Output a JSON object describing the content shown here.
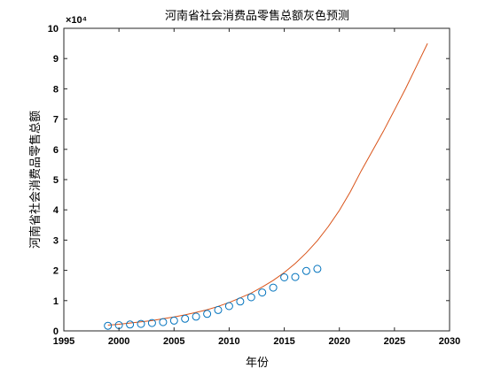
{
  "chart_data": {
    "type": "scatter",
    "title": "河南省社会消费品零售总额灰色预测",
    "xlabel": "年份",
    "ylabel": "河南省社会消费品零售总额",
    "exponent_label": "×10⁴",
    "xlim": [
      1995,
      2030
    ],
    "ylim": [
      0,
      10
    ],
    "xticks": [
      "1995",
      "2000",
      "2005",
      "2010",
      "2015",
      "2020",
      "2025",
      "2030"
    ],
    "yticks": [
      "0",
      "1",
      "2",
      "3",
      "4",
      "5",
      "6",
      "7",
      "8",
      "9",
      "10"
    ],
    "grid": false,
    "series": [
      {
        "kind": "observed",
        "marker": "circle",
        "color": "#0072BD",
        "x": [
          1999,
          2000,
          2001,
          2002,
          2003,
          2004,
          2005,
          2006,
          2007,
          2008,
          2009,
          2010,
          2011,
          2012,
          2013,
          2014,
          2015,
          2016,
          2017,
          2018
        ],
        "y": [
          0.17,
          0.19,
          0.21,
          0.23,
          0.26,
          0.29,
          0.34,
          0.4,
          0.47,
          0.56,
          0.69,
          0.82,
          0.97,
          1.11,
          1.27,
          1.43,
          1.77,
          1.78,
          1.98,
          2.05
        ]
      },
      {
        "kind": "fitted",
        "color": "#D95319",
        "x": [
          1999,
          2000,
          2001,
          2002,
          2003,
          2004,
          2005,
          2006,
          2007,
          2008,
          2009,
          2010,
          2011,
          2012,
          2013,
          2014,
          2015,
          2016,
          2017,
          2018,
          2019,
          2020,
          2021,
          2022,
          2023,
          2024,
          2025,
          2026,
          2027,
          2028
        ],
        "y": [
          0.19,
          0.22,
          0.26,
          0.3,
          0.34,
          0.4,
          0.46,
          0.53,
          0.61,
          0.7,
          0.81,
          0.94,
          1.09,
          1.25,
          1.45,
          1.67,
          1.93,
          2.23,
          2.58,
          2.98,
          3.45,
          3.98,
          4.6,
          5.3,
          5.95,
          6.6,
          7.3,
          8.0,
          8.75,
          9.5
        ]
      }
    ]
  }
}
